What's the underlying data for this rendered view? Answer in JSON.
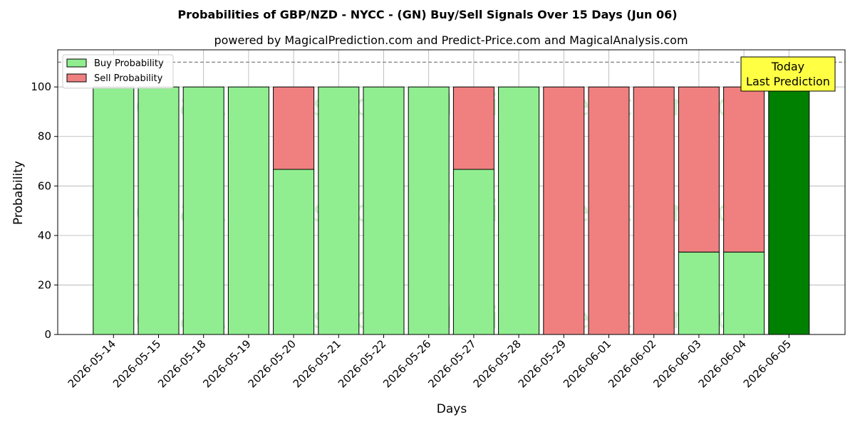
{
  "chart_data": {
    "type": "bar",
    "title": "Probabilities of GBP/NZD - NYCC -  (GN) Buy/Sell Signals Over 15 Days (Jun 06)",
    "subtitle": "powered by MagicalPrediction.com and Predict-Price.com and MagicalAnalysis.com",
    "xlabel": "Days",
    "ylabel": "Probability",
    "ylim": [
      0,
      115
    ],
    "yticks": [
      0,
      20,
      40,
      60,
      80,
      100
    ],
    "grid": true,
    "legend_position": "top-left",
    "stacked": true,
    "categories": [
      "2026-05-14",
      "2026-05-15",
      "2026-05-18",
      "2026-05-19",
      "2026-05-20",
      "2026-05-21",
      "2026-05-22",
      "2026-05-26",
      "2026-05-27",
      "2026-05-28",
      "2026-05-29",
      "2026-06-01",
      "2026-06-02",
      "2026-06-03",
      "2026-06-04",
      "2026-06-05"
    ],
    "series": [
      {
        "name": "Buy Probability",
        "color": "#90ee90",
        "values": [
          100,
          100,
          100,
          100,
          66.7,
          100,
          100,
          100,
          66.7,
          100,
          0,
          0,
          0,
          33.3,
          33.3,
          100
        ]
      },
      {
        "name": "Sell Probability",
        "color": "#f08080",
        "values": [
          0,
          0,
          0,
          0,
          33.3,
          0,
          0,
          0,
          33.3,
          0,
          100,
          100,
          100,
          66.7,
          66.7,
          0
        ]
      }
    ],
    "highlight": {
      "index": 15,
      "color": "#008000"
    },
    "reference_line": {
      "y": 110,
      "style": "dashed",
      "color": "#808080"
    },
    "annotation": {
      "lines": [
        "Today",
        "Last Prediction"
      ],
      "background": "#ffff44"
    },
    "watermark": [
      "MagicalAnalysis.com",
      "MagicalPrediction.com"
    ]
  }
}
